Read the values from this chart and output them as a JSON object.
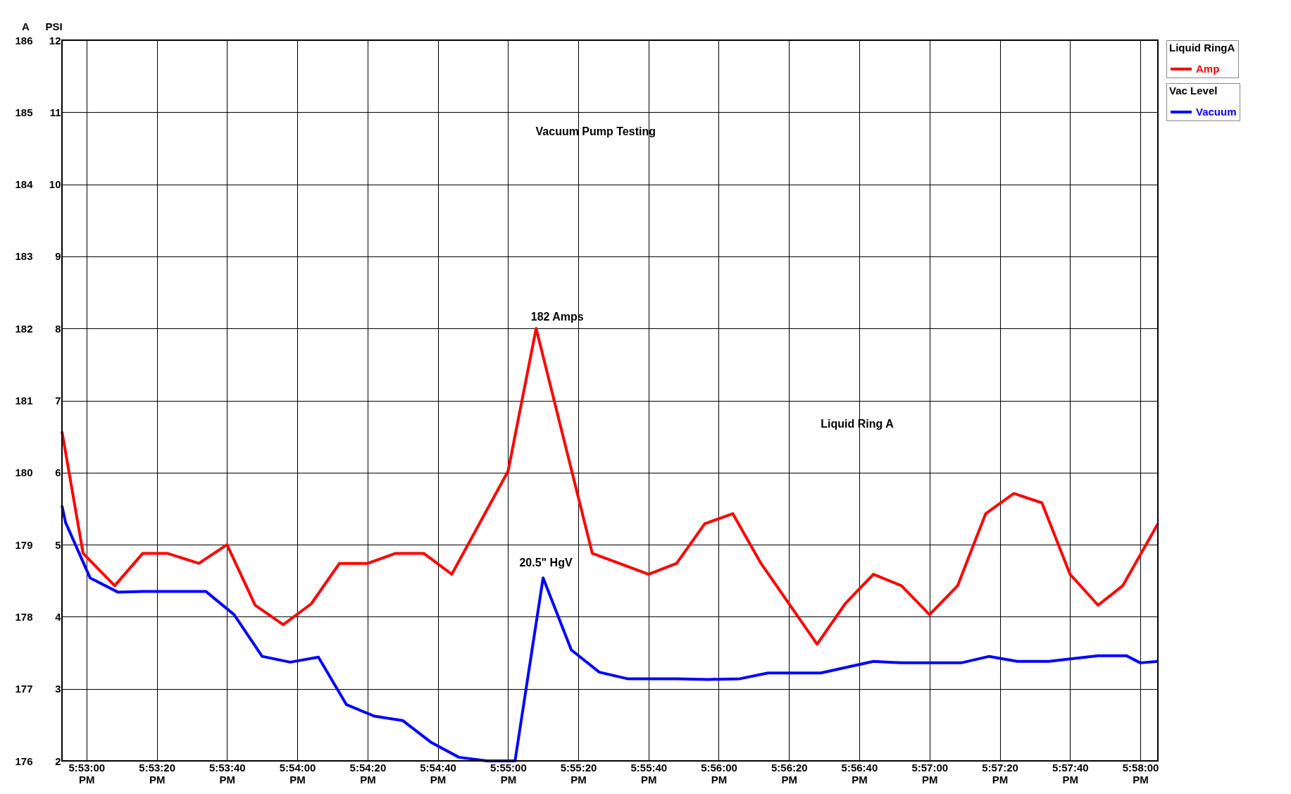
{
  "chart_data": {
    "type": "line",
    "title": "Vacuum Pump Testing",
    "ylabel": "A",
    "y2label": "PSI",
    "legend_title": "Liquid RingA",
    "xlim": [
      17.88139,
      17.96806
    ],
    "ylim": [
      176,
      186
    ],
    "y2lim": [
      2,
      12
    ],
    "yticks": [
      176,
      177,
      178,
      179,
      180,
      181,
      182,
      183,
      184,
      185,
      186
    ],
    "y2ticks": [
      2,
      3,
      4,
      5,
      6,
      7,
      8,
      9,
      10,
      11,
      12
    ],
    "xticks": [
      {
        "value": 17.88333,
        "label": "5:53:00 PM"
      },
      {
        "value": 17.88889,
        "label": "5:53:20 PM"
      },
      {
        "value": 17.89444,
        "label": "5:53:40 PM"
      },
      {
        "value": 17.9,
        "label": "5:54:00 PM"
      },
      {
        "value": 17.90556,
        "label": "5:54:20 PM"
      },
      {
        "value": 17.91111,
        "label": "5:54:40 PM"
      },
      {
        "value": 17.91667,
        "label": "5:55:00 PM"
      },
      {
        "value": 17.92222,
        "label": "5:55:20 PM"
      },
      {
        "value": 17.92778,
        "label": "5:55:40 PM"
      },
      {
        "value": 17.93333,
        "label": "5:56:00 PM"
      },
      {
        "value": 17.93889,
        "label": "5:56:20 PM"
      },
      {
        "value": 17.94444,
        "label": "5:56:40 PM"
      },
      {
        "value": 17.95,
        "label": "5:57:00 PM"
      },
      {
        "value": 17.95556,
        "label": "5:57:20 PM"
      },
      {
        "value": 17.96111,
        "label": "5:57:40 PM"
      },
      {
        "value": 17.96667,
        "label": "5:58:00 PM"
      }
    ],
    "grid": true,
    "legend": "right",
    "marker": "none",
    "line_style": "solid",
    "series": [
      {
        "name": "Amp",
        "color": "#ff0000",
        "x": [
          17.88139,
          17.88306,
          17.88556,
          17.88778,
          17.88972,
          17.89222,
          17.89444,
          17.89667,
          17.89889,
          17.90111,
          17.90333,
          17.90556,
          17.90778,
          17.91,
          17.91222,
          17.91667,
          17.91889,
          17.92333,
          17.92778,
          17.93,
          17.93222,
          17.93444,
          17.93667,
          17.94111,
          17.94333,
          17.94556,
          17.94778,
          17.95,
          17.95222,
          17.95444,
          17.95667,
          17.95889,
          17.96111,
          17.96333,
          17.96528,
          17.96806
        ],
        "values": [
          180.57,
          178.88,
          178.43,
          178.88,
          178.88,
          178.74,
          179.0,
          178.16,
          177.89,
          178.18,
          178.74,
          178.74,
          178.88,
          178.88,
          178.59,
          180.02,
          182,
          178.88,
          178.59,
          178.74,
          179.29,
          179.43,
          178.74,
          177.62,
          178.18,
          178.59,
          178.43,
          178.03,
          178.43,
          179.43,
          179.71,
          179.58,
          178.59,
          178.16,
          178.43,
          179.29
        ]
      },
      {
        "name": "Vacuum",
        "color": "#0000ff",
        "axis": "y2",
        "x": [
          17.88139,
          17.88167,
          17.88361,
          17.88583,
          17.88778,
          17.89278,
          17.895,
          17.89722,
          17.89944,
          17.90167,
          17.90389,
          17.90611,
          17.90833,
          17.91056,
          17.91278,
          17.915,
          17.91722,
          17.91944,
          17.92167,
          17.92389,
          17.92611,
          17.93,
          17.9325,
          17.935,
          17.93722,
          17.94139,
          17.94556,
          17.94778,
          17.9525,
          17.95472,
          17.95694,
          17.95944,
          17.96333,
          17.96556,
          17.96667,
          17.96806
        ],
        "values": [
          5.54,
          5.31,
          4.54,
          4.34,
          4.35,
          4.35,
          4.03,
          3.45,
          3.37,
          3.44,
          2.78,
          2.62,
          2.56,
          2.26,
          2.05,
          2.0,
          2.0,
          4.54,
          3.54,
          3.23,
          3.14,
          3.14,
          3.13,
          3.14,
          3.22,
          3.22,
          3.38,
          3.36,
          3.36,
          3.45,
          3.38,
          3.38,
          3.46,
          3.46,
          3.36,
          3.38
        ]
      }
    ],
    "annotations": [
      {
        "text": "182 Amps",
        "x": 17.91889,
        "y": 182
      },
      "20.5\" HgV",
      "Liquid Ring A",
      "Vac Level"
    ]
  }
}
